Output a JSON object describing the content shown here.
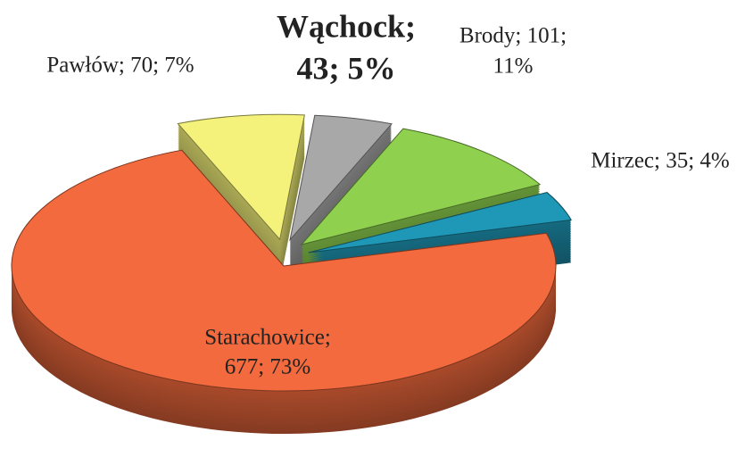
{
  "chart_data": {
    "type": "pie3d",
    "categories": [
      "Pawłów",
      "Wąchock",
      "Brody",
      "Mirzec",
      "Starachowice"
    ],
    "values": [
      70,
      43,
      101,
      35,
      677
    ],
    "value_labels": [
      [
        "Pawłów; 70; 7%"
      ],
      [
        "Wąchock;",
        "43; 5%"
      ],
      [
        "Brody; 101;",
        "11%"
      ],
      [
        "Mirzec; 35; 4%"
      ],
      [
        "Starachowice;",
        "677; 73%"
      ]
    ],
    "colors": [
      "#f4f27a",
      "#a8a8a8",
      "#8fd14f",
      "#1f97b6",
      "#f26a3d"
    ]
  }
}
